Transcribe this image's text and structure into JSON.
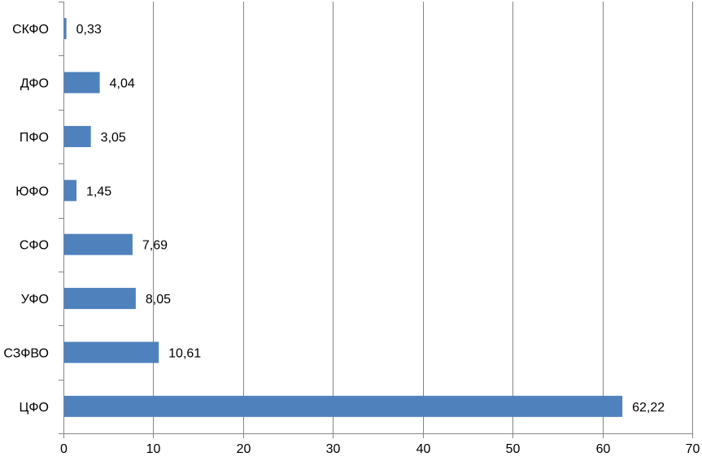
{
  "chart_data": {
    "type": "bar",
    "orientation": "horizontal",
    "categories": [
      "СКФО",
      "ДФО",
      "ПФО",
      "ЮФО",
      "СФО",
      "УФО",
      "СЗФВО",
      "ЦФО"
    ],
    "values": [
      0.33,
      4.04,
      3.05,
      1.45,
      7.69,
      8.05,
      10.61,
      62.22
    ],
    "data_labels": [
      "0,33",
      "4,04",
      "3,05",
      "1,45",
      "7,69",
      "8,05",
      "10,61",
      "62,22"
    ],
    "x_ticks": [
      0,
      10,
      20,
      30,
      40,
      50,
      60,
      70
    ],
    "x_tick_labels": [
      "0",
      "10",
      "20",
      "30",
      "40",
      "50",
      "60",
      "70"
    ],
    "xlim": [
      0,
      70
    ],
    "title": "",
    "xlabel": "",
    "ylabel": "",
    "grid": "vertical",
    "legend": "none",
    "bar_color": "#4f81bd",
    "grid_color": "#868686",
    "axis_color": "#868686"
  }
}
